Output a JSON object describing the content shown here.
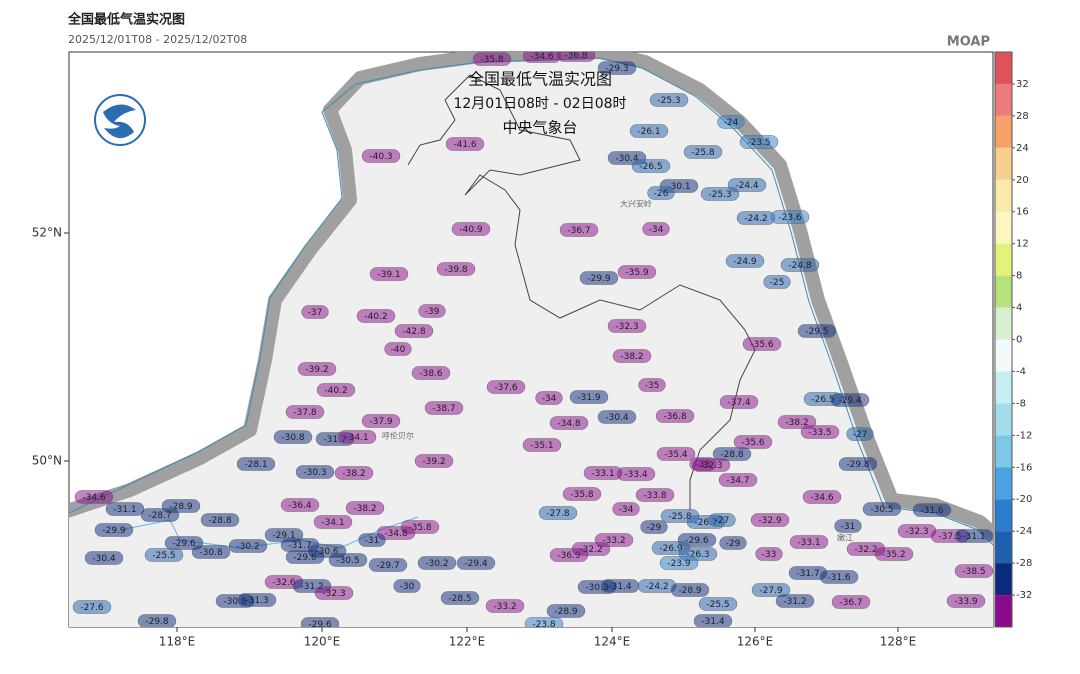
{
  "header": {
    "title": "全国最低气温实况图",
    "period": "2025/12/01T08 - 2025/12/02T08",
    "brand": "MOAP"
  },
  "map": {
    "overlay_title": [
      "全国最低气温实况图",
      "12月01日08时 - 02日08时",
      "中央气象台"
    ],
    "places": [
      "大兴安岭",
      "呼伦贝尔",
      "嫩江"
    ],
    "lat_labels": [
      "52°N",
      "50°N"
    ],
    "lon_labels": [
      "118°E",
      "120°E",
      "122°E",
      "124°E",
      "126°E",
      "128°E"
    ],
    "stations": [
      -35.8,
      -34.6,
      -36.8,
      -29.3,
      -25.3,
      -24,
      -23.5,
      -26.1,
      -30.4,
      -26.5,
      -25.8,
      -30.1,
      -26,
      -25.3,
      -24.4,
      -24.2,
      -23.6,
      -40.3,
      -41.6,
      -36.7,
      -34,
      -40.9,
      -39.1,
      -39.8,
      -29.9,
      -35.9,
      -24.9,
      -24.8,
      -25,
      -37,
      -40.2,
      -39,
      -42.8,
      -32.3,
      -29.5,
      -40,
      -38.2,
      -35.6,
      -39.2,
      -38.6,
      -40.2,
      -37.6,
      -35,
      -34,
      -31.9,
      -37.8,
      -37.9,
      -38.7,
      -34.8,
      -30.4,
      -36.8,
      -37.4,
      -26.5,
      -29.4,
      -38.2,
      -33.5,
      -27,
      -30.8,
      -31.7,
      -34.1,
      -35.1,
      -35.6,
      -28.8,
      -35.4,
      -35,
      -32.3,
      -28.1,
      -39.2,
      -29.8,
      -30.3,
      -38.2,
      -33.1,
      -33.4,
      -34.7,
      -34.6,
      -35.8,
      -33.8,
      -34.6,
      -28.9,
      -31.1,
      -28.7,
      -36.4,
      -38.2,
      -34,
      -25.8,
      -26.7,
      -27,
      -32.9,
      -30.5,
      -31.6,
      -29.9,
      -28.8,
      -34.1,
      -35.8,
      -34.8,
      -27.8,
      -29,
      -31,
      -32.3,
      -37.5,
      -31.1,
      -29.6,
      -30.2,
      -29.1,
      -31.7,
      -31,
      -33.2,
      -29.6,
      -29,
      -33.1,
      -30.4,
      -25.5,
      -30.8,
      -29.6,
      -30.6,
      -30.5,
      -29.7,
      -30.2,
      -29.4,
      -36.9,
      -32.2,
      -26.9,
      -26.3,
      -23.9,
      -33,
      -32.2,
      -35.2,
      -32.6,
      -31.2,
      -30,
      -30.3,
      -31.4,
      -24.2,
      -28.9,
      -27.9,
      -31.7,
      -31.6,
      -38.5,
      -32.3,
      -30.8,
      -31.3,
      -28.5,
      -25.5,
      -31.2,
      -36.7,
      -33.9,
      -27.6,
      -33.2,
      -28.9,
      -29.8,
      -29.6,
      -23.8,
      -31.4
    ]
  },
  "colorbar": {
    "ticks": [
      32,
      28,
      24,
      20,
      16,
      12,
      8,
      4,
      0,
      -4,
      -8,
      -12,
      -16,
      -20,
      -24,
      -28,
      -32
    ],
    "colors": [
      "#e0525a",
      "#ee7b7b",
      "#f5a167",
      "#f8cf8e",
      "#fbe9a8",
      "#fdf6c0",
      "#e4f27a",
      "#b5e27a",
      "#d7f0cf",
      "#f2fbfa",
      "#c8eef5",
      "#a3dcea",
      "#7cc8e6",
      "#4aa3e0",
      "#2d7ccd",
      "#1f5fb0",
      "#0b2a7e",
      "#8b0a8b"
    ]
  }
}
